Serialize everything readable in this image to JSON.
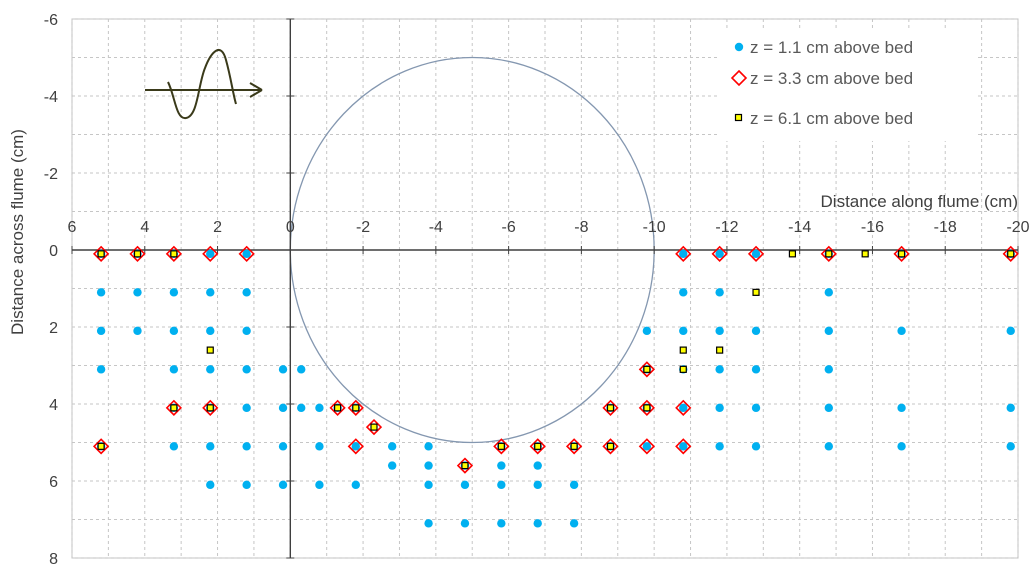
{
  "chart_data": {
    "type": "scatter",
    "xlabel": "Distance along flume (cm)",
    "ylabel": "Distance across flume (cm)",
    "xlim": [
      6,
      -20
    ],
    "ylim": [
      -6,
      8
    ],
    "x_ticks": [
      6,
      4,
      2,
      0,
      -2,
      -4,
      -6,
      -8,
      -10,
      -12,
      -14,
      -16,
      -18,
      -20
    ],
    "y_ticks": [
      -6,
      -4,
      -2,
      0,
      2,
      4,
      6,
      8
    ],
    "x_tick_labels": [
      "6",
      "4",
      "2",
      "0",
      "-2",
      "-4",
      "-6",
      "-8",
      "-10",
      "-12",
      "-14",
      "-16",
      "-18",
      "-20"
    ],
    "y_tick_labels": [
      "-6",
      "-4",
      "-2",
      "0",
      "2",
      "4",
      "6",
      "8"
    ],
    "grid": true,
    "legend_position": "top-right",
    "circle": {
      "center": [
        -5,
        0
      ],
      "radius": 5,
      "color": "#8497b0"
    },
    "series": [
      {
        "name": "z = 1.1 cm above bed",
        "marker": "circle",
        "color": "#00b0f0",
        "points": [
          [
            5.2,
            0.1
          ],
          [
            4.2,
            0.1
          ],
          [
            3.2,
            0.1
          ],
          [
            2.2,
            0.1
          ],
          [
            1.2,
            0.1
          ],
          [
            -10.8,
            0.1
          ],
          [
            -11.8,
            0.1
          ],
          [
            -12.8,
            0.1
          ],
          [
            -14.8,
            0.1
          ],
          [
            -16.8,
            0.1
          ],
          [
            -19.8,
            0.1
          ],
          [
            5.2,
            1.1
          ],
          [
            4.2,
            1.1
          ],
          [
            3.2,
            1.1
          ],
          [
            2.2,
            1.1
          ],
          [
            1.2,
            1.1
          ],
          [
            -10.8,
            1.1
          ],
          [
            -11.8,
            1.1
          ],
          [
            -14.8,
            1.1
          ],
          [
            5.2,
            2.1
          ],
          [
            4.2,
            2.1
          ],
          [
            3.2,
            2.1
          ],
          [
            2.2,
            2.1
          ],
          [
            1.2,
            2.1
          ],
          [
            -9.8,
            2.1
          ],
          [
            -10.8,
            2.1
          ],
          [
            -11.8,
            2.1
          ],
          [
            -12.8,
            2.1
          ],
          [
            -14.8,
            2.1
          ],
          [
            -16.8,
            2.1
          ],
          [
            -19.8,
            2.1
          ],
          [
            5.2,
            3.1
          ],
          [
            3.2,
            3.1
          ],
          [
            2.2,
            3.1
          ],
          [
            1.2,
            3.1
          ],
          [
            0.2,
            3.1
          ],
          [
            -0.3,
            3.1
          ],
          [
            -9.8,
            3.1
          ],
          [
            -10.8,
            3.1
          ],
          [
            -11.8,
            3.1
          ],
          [
            -12.8,
            3.1
          ],
          [
            -14.8,
            3.1
          ],
          [
            3.2,
            4.1
          ],
          [
            2.2,
            4.1
          ],
          [
            1.2,
            4.1
          ],
          [
            0.2,
            4.1
          ],
          [
            -0.3,
            4.1
          ],
          [
            -0.8,
            4.1
          ],
          [
            -1.3,
            4.1
          ],
          [
            -1.8,
            4.1
          ],
          [
            -8.8,
            4.1
          ],
          [
            -9.8,
            4.1
          ],
          [
            -10.8,
            4.1
          ],
          [
            -11.8,
            4.1
          ],
          [
            -12.8,
            4.1
          ],
          [
            -14.8,
            4.1
          ],
          [
            -16.8,
            4.1
          ],
          [
            -19.8,
            4.1
          ],
          [
            5.2,
            5.1
          ],
          [
            3.2,
            5.1
          ],
          [
            2.2,
            5.1
          ],
          [
            1.2,
            5.1
          ],
          [
            0.2,
            5.1
          ],
          [
            -0.8,
            5.1
          ],
          [
            -1.8,
            5.1
          ],
          [
            -2.8,
            5.1
          ],
          [
            -3.8,
            5.1
          ],
          [
            -5.8,
            5.1
          ],
          [
            -6.8,
            5.1
          ],
          [
            -7.8,
            5.1
          ],
          [
            -8.8,
            5.1
          ],
          [
            -9.8,
            5.1
          ],
          [
            -10.8,
            5.1
          ],
          [
            -11.8,
            5.1
          ],
          [
            -12.8,
            5.1
          ],
          [
            -14.8,
            5.1
          ],
          [
            -16.8,
            5.1
          ],
          [
            -19.8,
            5.1
          ],
          [
            -2.8,
            5.6
          ],
          [
            -3.8,
            5.6
          ],
          [
            -4.8,
            5.6
          ],
          [
            -5.8,
            5.6
          ],
          [
            -6.8,
            5.6
          ],
          [
            2.2,
            6.1
          ],
          [
            1.2,
            6.1
          ],
          [
            0.2,
            6.1
          ],
          [
            -0.8,
            6.1
          ],
          [
            -1.8,
            6.1
          ],
          [
            -3.8,
            6.1
          ],
          [
            -4.8,
            6.1
          ],
          [
            -5.8,
            6.1
          ],
          [
            -6.8,
            6.1
          ],
          [
            -7.8,
            6.1
          ],
          [
            -3.8,
            7.1
          ],
          [
            -4.8,
            7.1
          ],
          [
            -5.8,
            7.1
          ],
          [
            -6.8,
            7.1
          ],
          [
            -7.8,
            7.1
          ]
        ]
      },
      {
        "name": "z = 3.3 cm above bed",
        "marker": "diamond",
        "color": "#ff0000",
        "points": [
          [
            5.2,
            0.1
          ],
          [
            4.2,
            0.1
          ],
          [
            3.2,
            0.1
          ],
          [
            2.2,
            0.1
          ],
          [
            1.2,
            0.1
          ],
          [
            -10.8,
            0.1
          ],
          [
            -11.8,
            0.1
          ],
          [
            -12.8,
            0.1
          ],
          [
            -14.8,
            0.1
          ],
          [
            -16.8,
            0.1
          ],
          [
            -19.8,
            0.1
          ],
          [
            -9.8,
            3.1
          ],
          [
            3.2,
            4.1
          ],
          [
            2.2,
            4.1
          ],
          [
            -1.3,
            4.1
          ],
          [
            -1.8,
            4.1
          ],
          [
            -8.8,
            4.1
          ],
          [
            -9.8,
            4.1
          ],
          [
            -10.8,
            4.1
          ],
          [
            -2.3,
            4.6
          ],
          [
            5.2,
            5.1
          ],
          [
            -1.8,
            5.1
          ],
          [
            -5.8,
            5.1
          ],
          [
            -6.8,
            5.1
          ],
          [
            -7.8,
            5.1
          ],
          [
            -8.8,
            5.1
          ],
          [
            -9.8,
            5.1
          ],
          [
            -10.8,
            5.1
          ],
          [
            -4.8,
            5.6
          ]
        ]
      },
      {
        "name": "z = 6.1 cm above bed",
        "marker": "square",
        "color": "#ffff00",
        "points": [
          [
            5.2,
            0.1
          ],
          [
            4.2,
            0.1
          ],
          [
            3.2,
            0.1
          ],
          [
            -13.8,
            0.1
          ],
          [
            -14.8,
            0.1
          ],
          [
            -15.8,
            0.1
          ],
          [
            -16.8,
            0.1
          ],
          [
            -19.8,
            0.1
          ],
          [
            -12.8,
            1.1
          ],
          [
            2.2,
            2.6
          ],
          [
            -10.8,
            2.6
          ],
          [
            -11.8,
            2.6
          ],
          [
            -9.8,
            3.1
          ],
          [
            -10.8,
            3.1
          ],
          [
            3.2,
            4.1
          ],
          [
            2.2,
            4.1
          ],
          [
            -1.3,
            4.1
          ],
          [
            -1.8,
            4.1
          ],
          [
            -8.8,
            4.1
          ],
          [
            -9.8,
            4.1
          ],
          [
            -2.3,
            4.6
          ],
          [
            5.2,
            5.1
          ],
          [
            -5.8,
            5.1
          ],
          [
            -6.8,
            5.1
          ],
          [
            -7.8,
            5.1
          ],
          [
            -8.8,
            5.1
          ],
          [
            -4.8,
            5.6
          ]
        ]
      }
    ]
  }
}
